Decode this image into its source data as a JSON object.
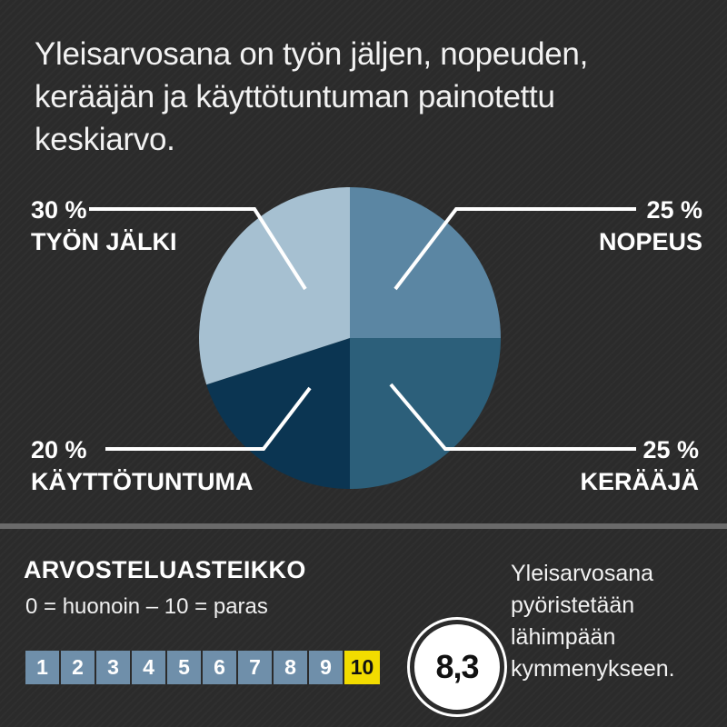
{
  "intro": {
    "text": "Yleisarvosana on työn jäljen, nopeuden, kerääjän ja käyttötuntuman painotettu keskiarvo."
  },
  "chart_data": {
    "type": "pie",
    "unit": "%",
    "slices": [
      {
        "label": "NOPEUS",
        "value": 25,
        "display": "25 %",
        "color": "#5b86a3"
      },
      {
        "label": "KERÄÄJÄ",
        "value": 25,
        "display": "25 %",
        "color": "#2c5f7a"
      },
      {
        "label": "KÄYTTÖTUNTUMA",
        "value": 20,
        "display": "20 %",
        "color": "#0b3552"
      },
      {
        "label": "TYÖN JÄLKI",
        "value": 30,
        "display": "30 %",
        "color": "#a6c0d1"
      }
    ]
  },
  "scale": {
    "title": "ARVOSTELUASTEIKKO",
    "description": "0 = huonoin – 10 = paras",
    "numbers": [
      "1",
      "2",
      "3",
      "4",
      "5",
      "6",
      "7",
      "8",
      "9",
      "10"
    ],
    "cell_color": "#6f8faa",
    "highlight_color": "#f2dc00"
  },
  "score": {
    "value": "8,3"
  },
  "note": {
    "text": "Yleisarvosana pyöristetään lähimpään kymmenykseen."
  }
}
